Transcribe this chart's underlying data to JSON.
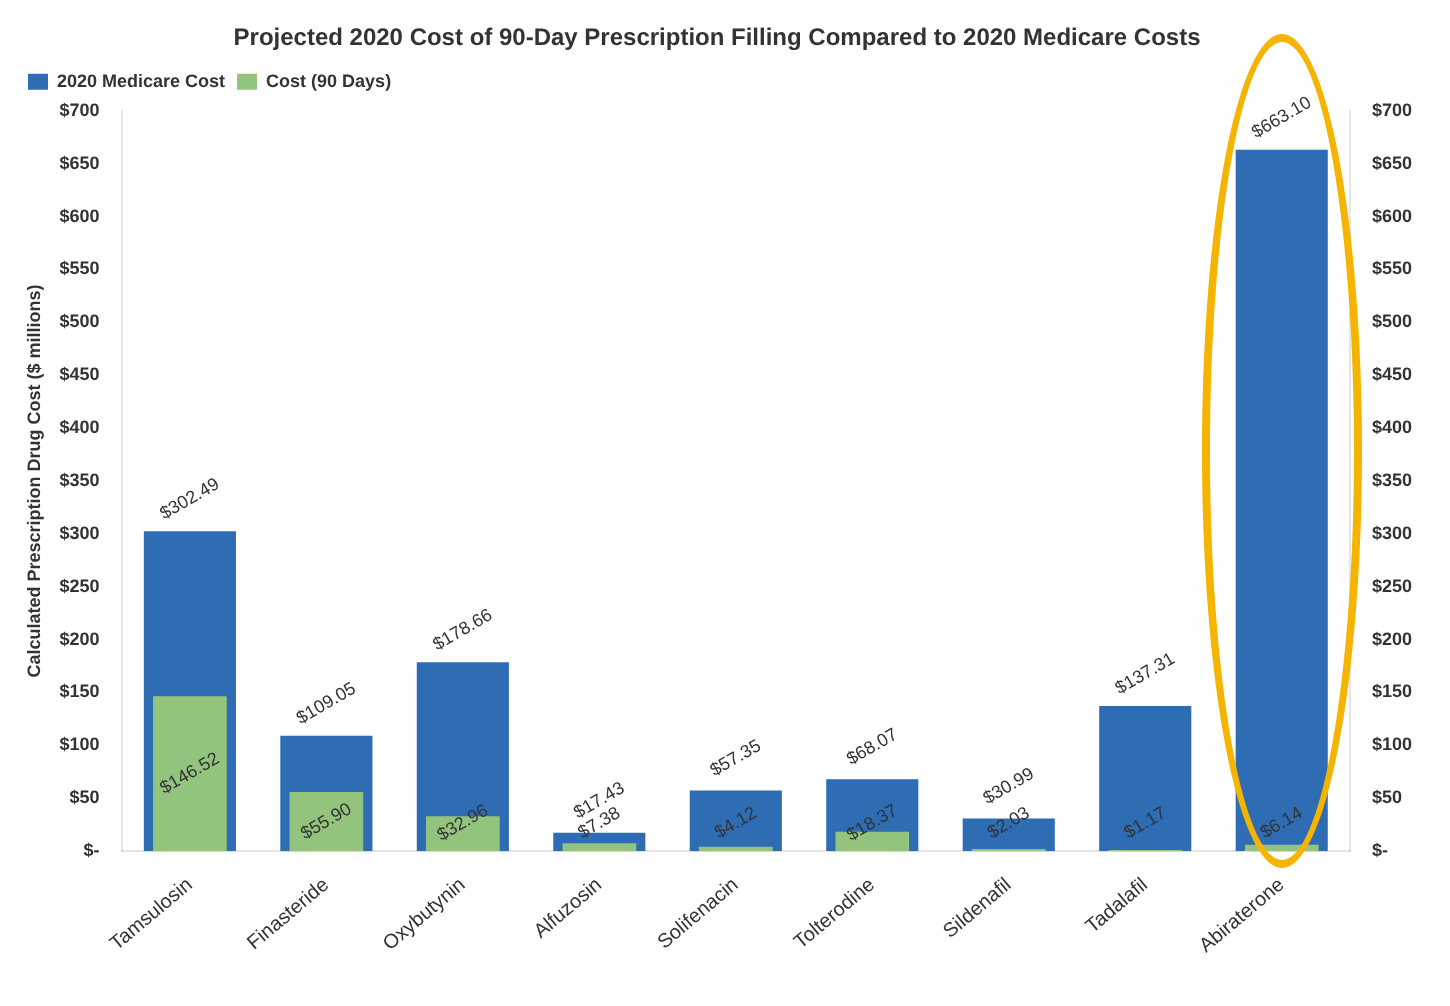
{
  "chart_data": {
    "type": "bar",
    "title": "Projected 2020 Cost of 90-Day Prescription Filling Compared to 2020 Medicare Costs",
    "ylabel": "Calculated Prescription Drug Cost ($ millions)",
    "categories": [
      "Tamsulosin",
      "Finasteride",
      "Oxybutynin",
      "Alfuzosin",
      "Solifenacin",
      "Tolterodine",
      "Sildenafil",
      "Tadalafil",
      "Abiraterone"
    ],
    "series": [
      {
        "name": "2020 Medicare Cost",
        "color": "#2e6db4",
        "values": [
          302.49,
          109.05,
          178.66,
          17.43,
          57.35,
          68.07,
          30.99,
          137.31,
          663.1
        ],
        "value_labels": [
          "$302.49",
          "$109.05",
          "$178.66",
          "$17.43",
          "$57.35",
          "$68.07",
          "$30.99",
          "$137.31",
          "$663.10"
        ]
      },
      {
        "name": "Cost (90 Days)",
        "color": "#93c47d",
        "values": [
          146.52,
          55.9,
          32.96,
          7.38,
          4.12,
          18.37,
          2.03,
          1.17,
          6.14
        ],
        "value_labels": [
          "$146.52",
          "$55.90",
          "$32.96",
          "$7.38",
          "$4.12",
          "$18.37",
          "$2.03",
          "$1.17",
          "$6.14"
        ]
      }
    ],
    "ylim": [
      0,
      700
    ],
    "yticks": [
      {
        "value": 0,
        "label": "$-"
      },
      {
        "value": 50,
        "label": "$50"
      },
      {
        "value": 100,
        "label": "$100"
      },
      {
        "value": 150,
        "label": "$150"
      },
      {
        "value": 200,
        "label": "$200"
      },
      {
        "value": 250,
        "label": "$250"
      },
      {
        "value": 300,
        "label": "$300"
      },
      {
        "value": 350,
        "label": "$350"
      },
      {
        "value": 400,
        "label": "$400"
      },
      {
        "value": 450,
        "label": "$450"
      },
      {
        "value": 500,
        "label": "$500"
      },
      {
        "value": 550,
        "label": "$550"
      },
      {
        "value": 600,
        "label": "$600"
      },
      {
        "value": 650,
        "label": "$650"
      },
      {
        "value": 700,
        "label": "$700"
      }
    ],
    "y2lim": [
      0,
      700
    ],
    "y2ticks": [
      {
        "value": 0,
        "label": "$-"
      },
      {
        "value": 50,
        "label": "$50"
      },
      {
        "value": 100,
        "label": "$100"
      },
      {
        "value": 150,
        "label": "$150"
      },
      {
        "value": 200,
        "label": "$200"
      },
      {
        "value": 250,
        "label": "$250"
      },
      {
        "value": 300,
        "label": "$300"
      },
      {
        "value": 350,
        "label": "$350"
      },
      {
        "value": 400,
        "label": "$400"
      },
      {
        "value": 450,
        "label": "$450"
      },
      {
        "value": 500,
        "label": "$500"
      },
      {
        "value": 550,
        "label": "$550"
      },
      {
        "value": 600,
        "label": "$600"
      },
      {
        "value": 650,
        "label": "$650"
      },
      {
        "value": 700,
        "label": "$700"
      }
    ],
    "grid": false,
    "legend": "top left"
  }
}
